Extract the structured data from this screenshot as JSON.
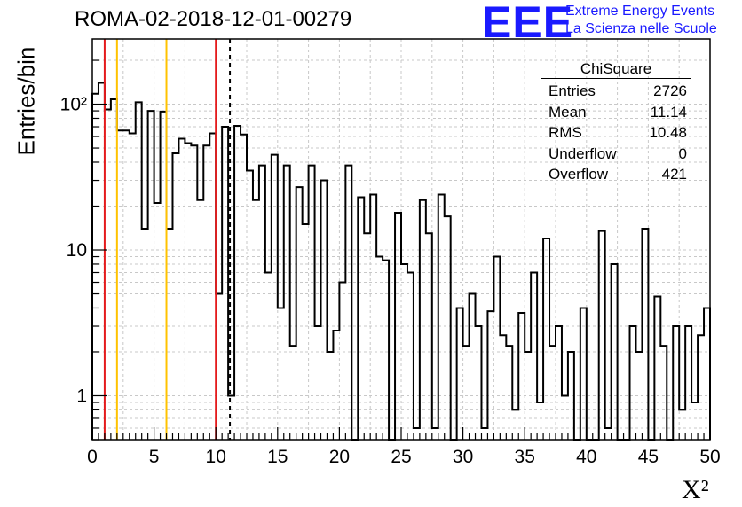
{
  "title": "ROMA-02-2018-12-01-00279",
  "logo": {
    "mark": "EEE",
    "line1": "Extreme Energy Events",
    "line2": "La Scienza nelle Scuole",
    "color": "#1a1aff"
  },
  "stats": {
    "name": "ChiSquare",
    "rows": [
      {
        "label": "Entries",
        "value": "2726"
      },
      {
        "label": "Mean",
        "value": "11.14"
      },
      {
        "label": "RMS",
        "value": "10.48"
      },
      {
        "label": "Underflow",
        "value": "0"
      },
      {
        "label": "Overflow",
        "value": "421"
      }
    ]
  },
  "chart_data": {
    "type": "bar",
    "style": "step-histogram",
    "xlabel": "X²",
    "ylabel": "Entries/bin",
    "xlim": [
      0,
      50
    ],
    "ylim": [
      0.5,
      280
    ],
    "ylog": true,
    "grid": true,
    "bin_width": 0.5,
    "x_ticks": [
      "0",
      "5",
      "10",
      "15",
      "20",
      "25",
      "30",
      "35",
      "40",
      "45",
      "50"
    ],
    "y_ticks": [
      {
        "value": 1,
        "label": "1"
      },
      {
        "value": 10,
        "label": "10"
      },
      {
        "value": 100,
        "label": "10²"
      }
    ],
    "values": [
      118,
      140,
      92,
      108,
      66,
      66,
      63,
      103,
      14,
      90,
      21,
      89,
      14,
      46,
      58,
      54,
      52,
      22,
      52,
      63,
      5,
      70,
      1,
      71,
      62,
      35,
      22,
      38,
      7,
      45,
      4,
      38,
      2.2,
      27,
      15,
      38,
      3,
      30,
      2,
      2.8,
      6,
      38,
      0.4,
      23,
      13,
      24,
      9,
      8.5,
      0.4,
      18,
      8,
      7,
      0.6,
      22,
      13,
      0.6,
      24,
      17,
      0.4,
      4,
      2.2,
      5,
      3,
      0.6,
      3.8,
      9,
      2.6,
      2.2,
      0.8,
      3.7,
      2,
      7,
      0.9,
      12,
      2.2,
      3,
      1,
      2,
      0.2,
      4,
      0.4,
      0.4,
      13.5,
      0.6,
      8,
      0.1,
      0.4,
      3,
      2,
      14,
      0.4,
      4.8,
      2.2,
      0.5,
      3,
      0.8,
      3,
      0.9,
      2.6,
      4
    ],
    "vlines": [
      {
        "x": 1,
        "color": "#e41a1c",
        "style": "solid"
      },
      {
        "x": 2,
        "color": "#ffc200",
        "style": "solid"
      },
      {
        "x": 6,
        "color": "#ffc200",
        "style": "solid"
      },
      {
        "x": 10,
        "color": "#e41a1c",
        "style": "solid"
      },
      {
        "x": 11.14,
        "color": "#000000",
        "style": "dashed"
      }
    ]
  }
}
